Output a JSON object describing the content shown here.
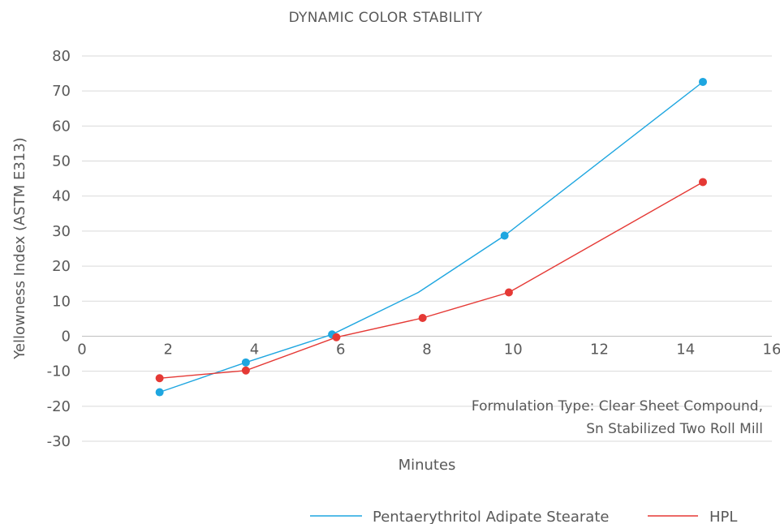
{
  "chart_data": {
    "type": "scatter",
    "title": "DYNAMIC COLOR STABILITY",
    "xlabel": "Minutes",
    "ylabel": "Yellowness Index (ASTM E313)",
    "xlim": [
      0,
      16
    ],
    "ylim": [
      -30,
      80
    ],
    "x_ticks": [
      0,
      2,
      4,
      6,
      8,
      10,
      12,
      14,
      16
    ],
    "y_ticks": [
      80,
      70,
      60,
      50,
      40,
      30,
      20,
      10,
      0,
      -10,
      -20,
      -30
    ],
    "grid": true,
    "legend_position": "bottom-right",
    "annotation_lines": [
      "Formulation Type: Clear Sheet Compound,",
      "Sn Stabilized Two Roll Mill"
    ],
    "series": [
      {
        "name": "Pentaerythritol Adipate Stearate",
        "color": "#1ea6e0",
        "x": [
          1.8,
          3.8,
          5.8,
          7.8,
          9.8,
          14.4
        ],
        "y": [
          -16,
          -7.5,
          0.5,
          12.5,
          28.7,
          72.6
        ],
        "markers": [
          true,
          true,
          true,
          false,
          true,
          true
        ]
      },
      {
        "name": "HPL",
        "color": "#e53935",
        "x": [
          1.8,
          3.8,
          5.9,
          7.9,
          9.9,
          14.4
        ],
        "y": [
          -12,
          -9.8,
          -0.3,
          5.2,
          12.5,
          44.0
        ],
        "markers": [
          true,
          true,
          true,
          true,
          true,
          true
        ]
      }
    ]
  }
}
